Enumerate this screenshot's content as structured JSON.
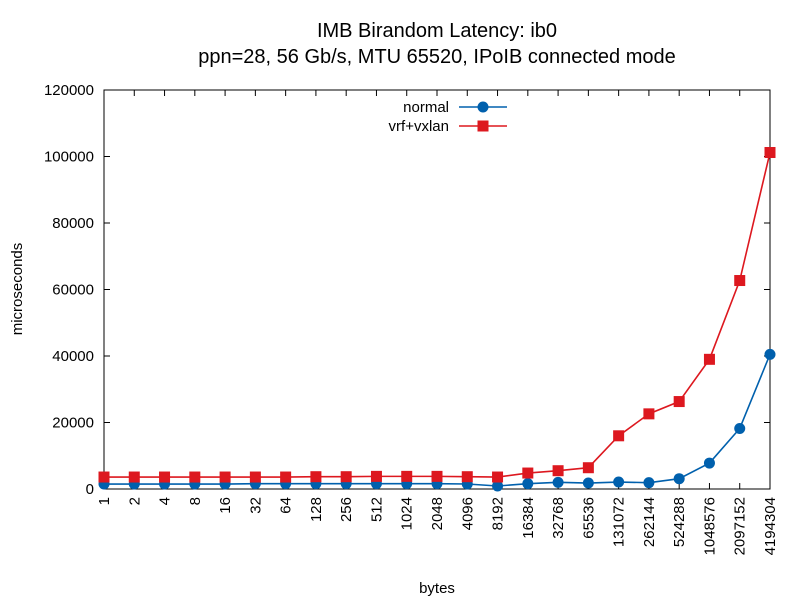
{
  "chart_data": {
    "type": "line",
    "title": "IMB Birandom Latency: ib0",
    "subtitle": "ppn=28, 56 Gb/s, MTU 65520, IPoIB connected mode",
    "xlabel": "bytes",
    "ylabel": "microseconds",
    "ylim": [
      0,
      120000
    ],
    "y_ticks": [
      "0",
      "20000",
      "40000",
      "60000",
      "80000",
      "100000",
      "120000"
    ],
    "categories": [
      "1",
      "2",
      "4",
      "8",
      "16",
      "32",
      "64",
      "128",
      "256",
      "512",
      "1024",
      "2048",
      "4096",
      "8192",
      "16384",
      "32768",
      "65536",
      "131072",
      "262144",
      "524288",
      "1048576",
      "2097152",
      "4194304"
    ],
    "legend_position": "top-center",
    "grid": false,
    "series": [
      {
        "name": "normal",
        "color": "#0060ad",
        "marker": "circle",
        "values": [
          1500,
          1500,
          1500,
          1500,
          1500,
          1600,
          1600,
          1600,
          1600,
          1600,
          1600,
          1600,
          1500,
          900,
          1600,
          2000,
          1800,
          2100,
          1900,
          3100,
          7800,
          18200,
          40500
        ]
      },
      {
        "name": "vrf+vxlan",
        "color": "#dd181f",
        "marker": "square",
        "values": [
          3600,
          3600,
          3600,
          3600,
          3600,
          3600,
          3600,
          3700,
          3700,
          3800,
          3800,
          3800,
          3700,
          3600,
          4800,
          5500,
          6400,
          16000,
          22600,
          26300,
          39000,
          62700,
          101200
        ]
      }
    ]
  }
}
